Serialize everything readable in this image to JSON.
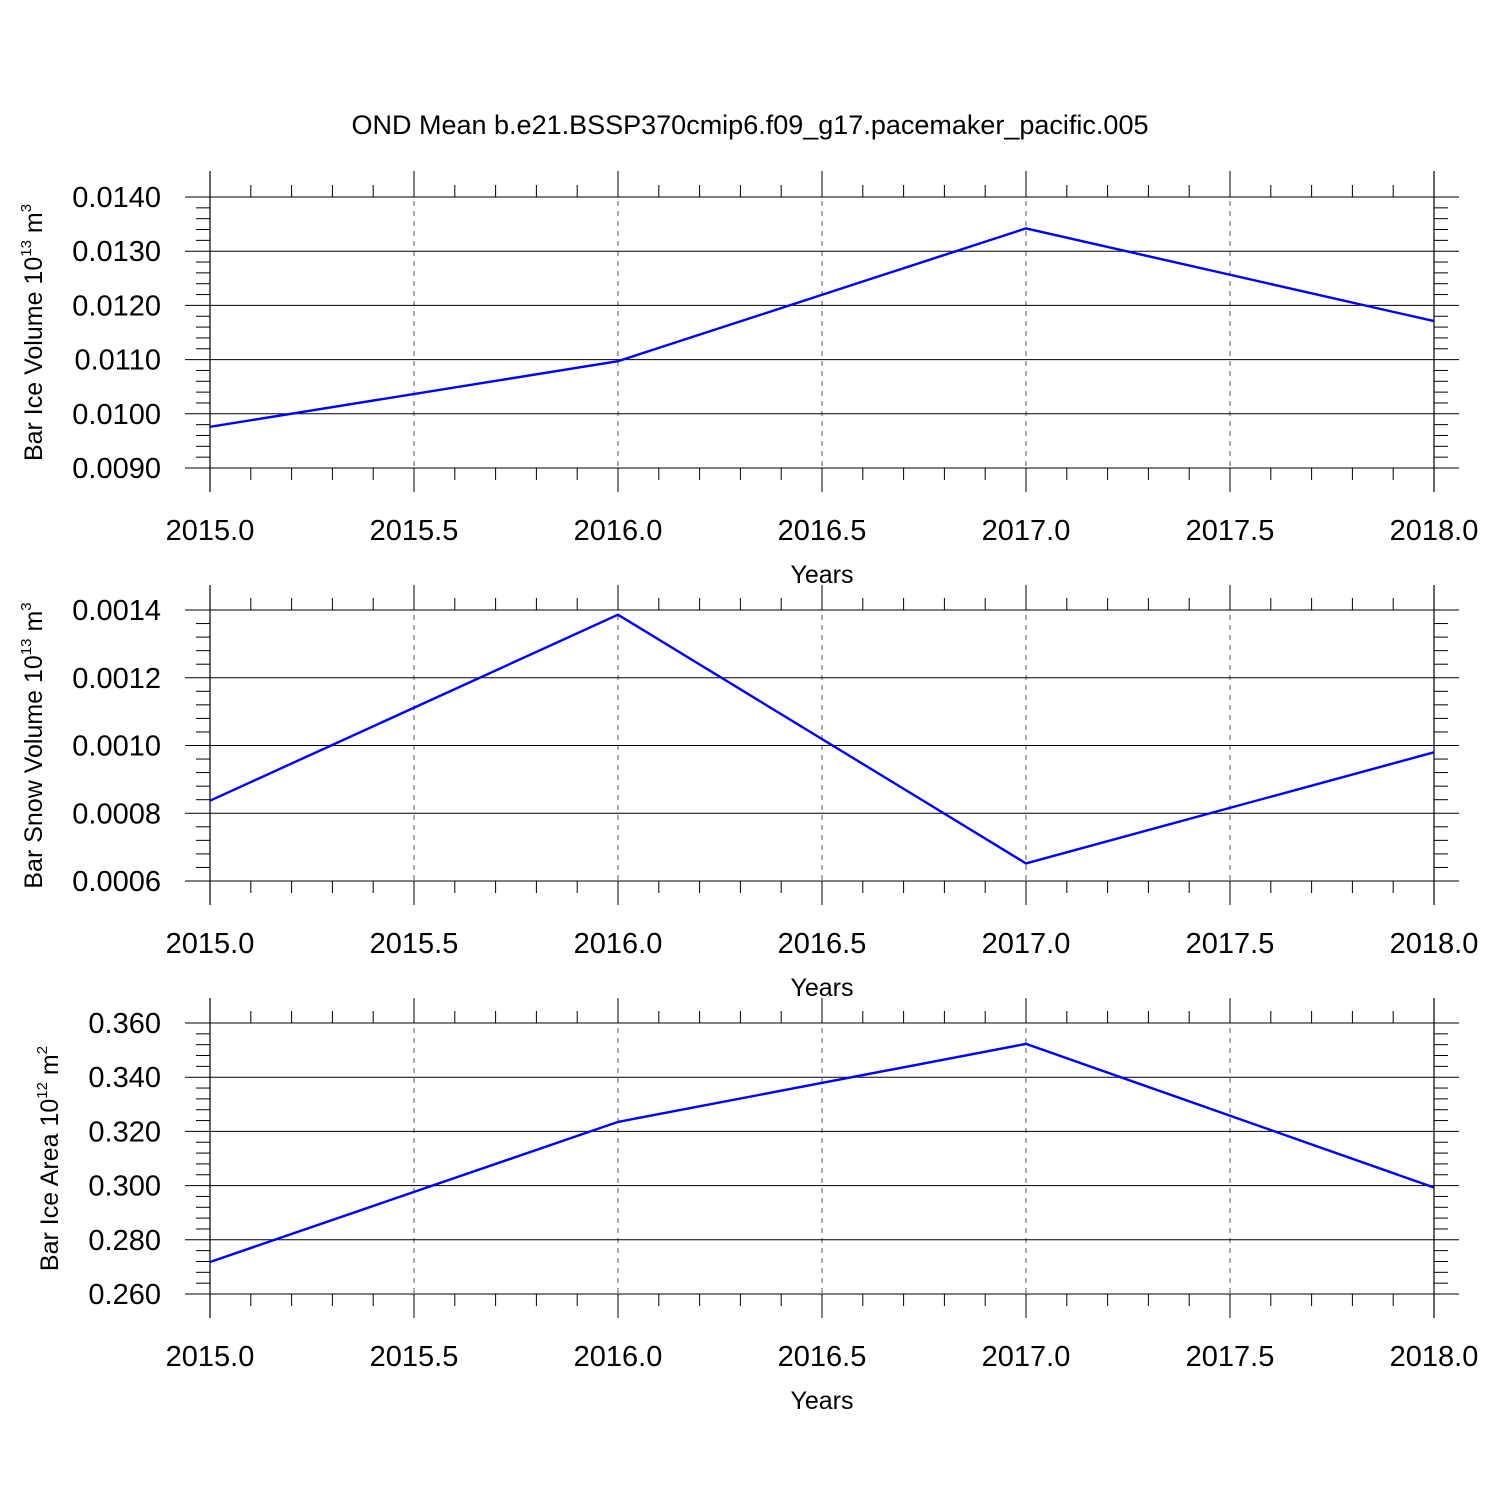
{
  "figure": {
    "title": "OND Mean b.e21.BSSP370cmip6.f09_g17.pacemaker_pacific.005"
  },
  "chart_data": [
    {
      "type": "line",
      "xlabel": "Years",
      "ylabel": {
        "base": "Bar Ice Volume 10",
        "exp": "13",
        "unit": " m",
        "unit_exp": "3"
      },
      "xlim": [
        2015.0,
        2018.0
      ],
      "ylim": [
        0.009,
        0.014
      ],
      "xticks": [
        2015.0,
        2015.5,
        2016.0,
        2016.5,
        2017.0,
        2017.5,
        2018.0
      ],
      "xtick_labels": [
        "2015.0",
        "2015.5",
        "2016.0",
        "2016.5",
        "2017.0",
        "2017.5",
        "2018.0"
      ],
      "yticks": [
        0.009,
        0.01,
        0.011,
        0.012,
        0.013,
        0.014
      ],
      "ytick_labels": [
        "0.0090",
        "0.0100",
        "0.0110",
        "0.0120",
        "0.0130",
        "0.0140"
      ],
      "x_grid": "dashed",
      "x": [
        2015,
        2016,
        2017,
        2018
      ],
      "series": [
        {
          "values": [
            0.00976,
            0.01097,
            0.01342,
            0.01171
          ],
          "color": "#0000ff"
        }
      ]
    },
    {
      "type": "line",
      "xlabel": "Years",
      "ylabel": {
        "base": "Bar Snow Volume 10",
        "exp": "13",
        "unit": " m",
        "unit_exp": "3"
      },
      "xlim": [
        2015.0,
        2018.0
      ],
      "ylim": [
        0.0006,
        0.0014
      ],
      "xticks": [
        2015.0,
        2015.5,
        2016.0,
        2016.5,
        2017.0,
        2017.5,
        2018.0
      ],
      "xtick_labels": [
        "2015.0",
        "2015.5",
        "2016.0",
        "2016.5",
        "2017.0",
        "2017.5",
        "2018.0"
      ],
      "yticks": [
        0.0006,
        0.0008,
        0.001,
        0.0012,
        0.0014
      ],
      "ytick_labels": [
        "0.0006",
        "0.0008",
        "0.0010",
        "0.0012",
        "0.0014"
      ],
      "x_grid": "dashed",
      "x": [
        2015,
        2016,
        2017,
        2018
      ],
      "series": [
        {
          "values": [
            0.000837,
            0.001386,
            0.000652,
            0.00098
          ],
          "color": "#0000ff"
        }
      ]
    },
    {
      "type": "line",
      "xlabel": "Years",
      "ylabel": {
        "base": "Bar Ice Area 10",
        "exp": "12",
        "unit": " m",
        "unit_exp": "2"
      },
      "xlim": [
        2015.0,
        2018.0
      ],
      "ylim": [
        0.26,
        0.36
      ],
      "xticks": [
        2015.0,
        2015.5,
        2016.0,
        2016.5,
        2017.0,
        2017.5,
        2018.0
      ],
      "xtick_labels": [
        "2015.0",
        "2015.5",
        "2016.0",
        "2016.5",
        "2017.0",
        "2017.5",
        "2018.0"
      ],
      "yticks": [
        0.26,
        0.28,
        0.3,
        0.32,
        0.34,
        0.36
      ],
      "ytick_labels": [
        "0.260",
        "0.280",
        "0.300",
        "0.320",
        "0.340",
        "0.360"
      ],
      "x_grid": "dashed",
      "x": [
        2015,
        2016,
        2017,
        2018
      ],
      "series": [
        {
          "values": [
            0.2718,
            0.3235,
            0.3523,
            0.2993
          ],
          "color": "#0000ff"
        }
      ]
    }
  ]
}
